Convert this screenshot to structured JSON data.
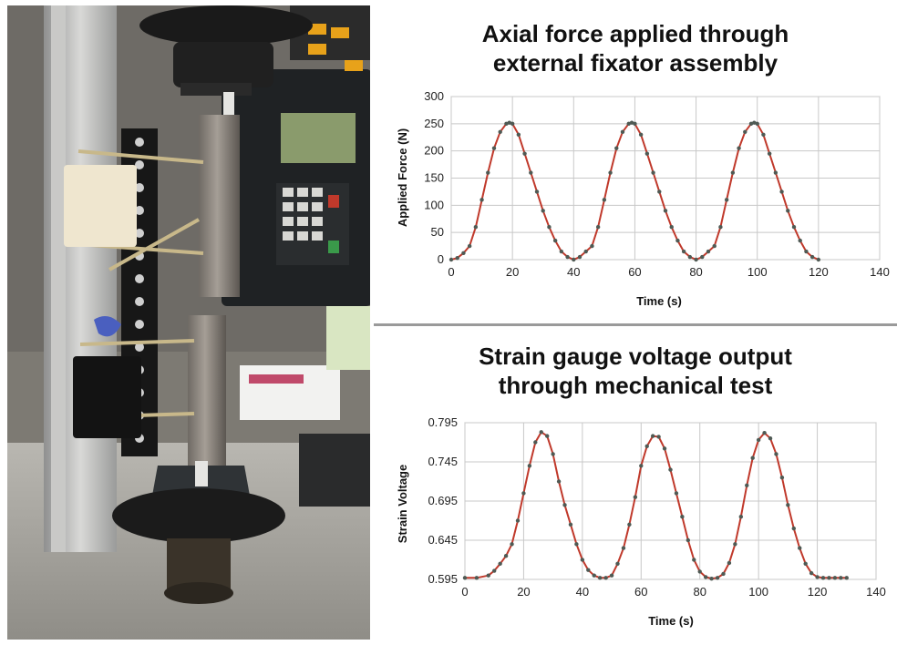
{
  "chart_data": [
    {
      "type": "line",
      "title_line1": "Axial force applied through",
      "title_line2": "external fixator assembly",
      "xlabel": "Time (s)",
      "ylabel": "Applied Force (N)",
      "xlim": [
        0,
        140
      ],
      "ylim": [
        0,
        300
      ],
      "xticks": [
        0,
        20,
        40,
        60,
        80,
        100,
        120,
        140
      ],
      "yticks": [
        0,
        50,
        100,
        150,
        200,
        250,
        300
      ],
      "xtick_labels": [
        "0",
        "20",
        "40",
        "60",
        "80",
        "100",
        "120",
        "140"
      ],
      "ytick_labels": [
        "0",
        "50",
        "100",
        "150",
        "200",
        "250",
        "300"
      ],
      "grid": true,
      "series": [
        {
          "color": "#c0392b",
          "x": [
            0,
            2,
            4,
            6,
            8,
            10,
            12,
            14,
            16,
            18,
            19,
            20,
            22,
            24,
            26,
            28,
            30,
            32,
            34,
            36,
            38,
            40,
            42,
            44,
            46,
            48,
            50,
            52,
            54,
            56,
            58,
            59,
            60,
            62,
            64,
            66,
            68,
            70,
            72,
            74,
            76,
            78,
            80,
            82,
            84,
            86,
            88,
            90,
            92,
            94,
            96,
            98,
            99,
            100,
            102,
            104,
            106,
            108,
            110,
            112,
            114,
            116,
            118,
            120
          ],
          "y": [
            0,
            3,
            12,
            25,
            60,
            110,
            160,
            205,
            235,
            250,
            252,
            250,
            230,
            195,
            160,
            125,
            90,
            60,
            35,
            15,
            5,
            0,
            5,
            15,
            25,
            60,
            110,
            160,
            205,
            235,
            250,
            252,
            250,
            230,
            195,
            160,
            125,
            90,
            60,
            35,
            15,
            5,
            0,
            5,
            15,
            25,
            60,
            110,
            160,
            205,
            235,
            250,
            252,
            250,
            230,
            195,
            160,
            125,
            90,
            60,
            35,
            15,
            5,
            0
          ]
        }
      ]
    },
    {
      "type": "line",
      "title_line1": "Strain gauge voltage output",
      "title_line2": "through mechanical test",
      "xlabel": "Time (s)",
      "ylabel": "Strain Voltage",
      "xlim": [
        0,
        140
      ],
      "ylim": [
        0.595,
        0.795
      ],
      "xticks": [
        0,
        20,
        40,
        60,
        80,
        100,
        120,
        140
      ],
      "yticks": [
        0.595,
        0.645,
        0.695,
        0.745,
        0.795
      ],
      "xtick_labels": [
        "0",
        "20",
        "40",
        "60",
        "80",
        "100",
        "120",
        "140"
      ],
      "ytick_labels": [
        "0.595",
        "0.645",
        "0.695",
        "0.745",
        "0.795"
      ],
      "grid": true,
      "series": [
        {
          "color": "#c0392b",
          "x": [
            0,
            4,
            8,
            10,
            12,
            14,
            16,
            18,
            20,
            22,
            24,
            26,
            28,
            30,
            32,
            34,
            36,
            38,
            40,
            42,
            44,
            46,
            48,
            50,
            52,
            54,
            56,
            58,
            60,
            62,
            64,
            66,
            68,
            70,
            72,
            74,
            76,
            78,
            80,
            82,
            84,
            86,
            88,
            90,
            92,
            94,
            96,
            98,
            100,
            102,
            104,
            106,
            108,
            110,
            112,
            114,
            116,
            118,
            120,
            122,
            124,
            126,
            128,
            130
          ],
          "y": [
            0.597,
            0.597,
            0.6,
            0.606,
            0.615,
            0.625,
            0.64,
            0.67,
            0.705,
            0.74,
            0.77,
            0.783,
            0.778,
            0.755,
            0.72,
            0.69,
            0.665,
            0.64,
            0.62,
            0.607,
            0.6,
            0.597,
            0.597,
            0.6,
            0.615,
            0.635,
            0.665,
            0.7,
            0.74,
            0.765,
            0.778,
            0.777,
            0.762,
            0.735,
            0.705,
            0.675,
            0.645,
            0.62,
            0.605,
            0.598,
            0.596,
            0.597,
            0.602,
            0.616,
            0.64,
            0.675,
            0.715,
            0.75,
            0.773,
            0.782,
            0.775,
            0.755,
            0.725,
            0.69,
            0.66,
            0.635,
            0.615,
            0.603,
            0.598,
            0.597,
            0.597,
            0.597,
            0.597,
            0.597
          ]
        }
      ]
    }
  ]
}
